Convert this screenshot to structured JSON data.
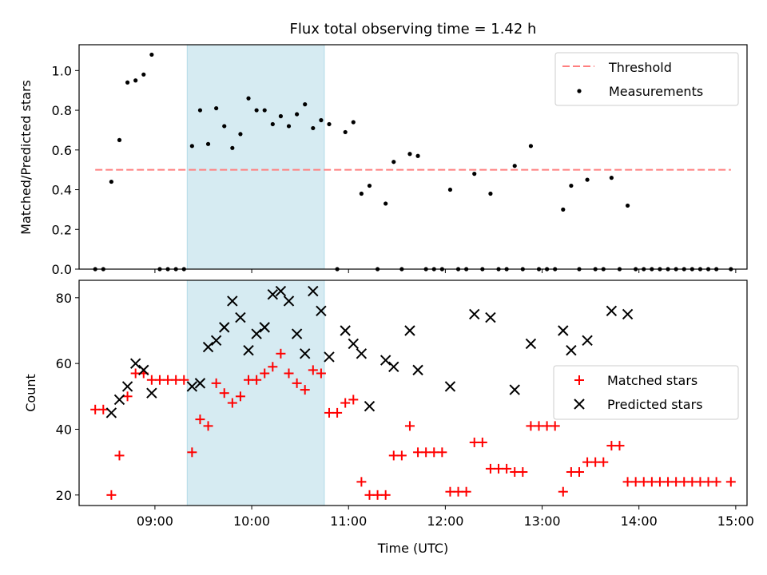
{
  "figure_title": "Flux total observing time = 1.42 h",
  "colors": {
    "threshold": "#ff7f7f",
    "measurements": "#000000",
    "matched": "#ff0000",
    "predicted": "#000000",
    "shade": "#add8e6"
  },
  "chart_data": [
    {
      "type": "scatter",
      "title": "",
      "ylabel": "Matched/Predicted stars",
      "xlabel": "",
      "xlim": [
        "08:13",
        "15:07"
      ],
      "ylim": [
        0,
        1.13
      ],
      "yticks": [
        "0.0",
        "0.2",
        "0.4",
        "0.6",
        "0.8",
        "1.0"
      ],
      "grid": false,
      "legend_position": "top-right",
      "legend": [
        "Threshold",
        "Measurements"
      ],
      "shaded_interval": [
        "09:20",
        "10:45"
      ],
      "threshold": {
        "name": "Threshold",
        "y": 0.5,
        "x_start": "08:23",
        "x_end": "14:57",
        "style": "dashed"
      },
      "series": [
        {
          "name": "Measurements",
          "points": [
            [
              "08:23",
              0
            ],
            [
              "08:28",
              0
            ],
            [
              "08:33",
              0.44
            ],
            [
              "08:38",
              0.65
            ],
            [
              "08:43",
              0.94
            ],
            [
              "08:48",
              0.95
            ],
            [
              "08:53",
              0.98
            ],
            [
              "08:58",
              1.08
            ],
            [
              "09:03",
              0
            ],
            [
              "09:08",
              0
            ],
            [
              "09:13",
              0
            ],
            [
              "09:18",
              0
            ],
            [
              "09:23",
              0.62
            ],
            [
              "09:28",
              0.8
            ],
            [
              "09:33",
              0.63
            ],
            [
              "09:38",
              0.81
            ],
            [
              "09:43",
              0.72
            ],
            [
              "09:48",
              0.61
            ],
            [
              "09:53",
              0.68
            ],
            [
              "09:58",
              0.86
            ],
            [
              "10:03",
              0.8
            ],
            [
              "10:08",
              0.8
            ],
            [
              "10:13",
              0.73
            ],
            [
              "10:18",
              0.77
            ],
            [
              "10:23",
              0.72
            ],
            [
              "10:28",
              0.78
            ],
            [
              "10:33",
              0.83
            ],
            [
              "10:38",
              0.71
            ],
            [
              "10:43",
              0.75
            ],
            [
              "10:48",
              0.73
            ],
            [
              "10:53",
              0
            ],
            [
              "10:58",
              0.69
            ],
            [
              "11:03",
              0.74
            ],
            [
              "11:08",
              0.38
            ],
            [
              "11:13",
              0.42
            ],
            [
              "11:18",
              0
            ],
            [
              "11:23",
              0.33
            ],
            [
              "11:28",
              0.54
            ],
            [
              "11:33",
              0
            ],
            [
              "11:38",
              0.58
            ],
            [
              "11:43",
              0.57
            ],
            [
              "11:48",
              0
            ],
            [
              "11:53",
              0
            ],
            [
              "11:58",
              0
            ],
            [
              "12:03",
              0.4
            ],
            [
              "12:08",
              0
            ],
            [
              "12:13",
              0
            ],
            [
              "12:18",
              0.48
            ],
            [
              "12:23",
              0
            ],
            [
              "12:28",
              0.38
            ],
            [
              "12:33",
              0
            ],
            [
              "12:38",
              0
            ],
            [
              "12:43",
              0.52
            ],
            [
              "12:48",
              0
            ],
            [
              "12:53",
              0.62
            ],
            [
              "12:58",
              0
            ],
            [
              "13:03",
              0
            ],
            [
              "13:08",
              0
            ],
            [
              "13:13",
              0.3
            ],
            [
              "13:18",
              0.42
            ],
            [
              "13:23",
              0
            ],
            [
              "13:28",
              0.45
            ],
            [
              "13:33",
              0
            ],
            [
              "13:38",
              0
            ],
            [
              "13:43",
              0.46
            ],
            [
              "13:48",
              0
            ],
            [
              "13:53",
              0.32
            ],
            [
              "13:58",
              0
            ],
            [
              "14:03",
              0
            ],
            [
              "14:08",
              0
            ],
            [
              "14:13",
              0
            ],
            [
              "14:18",
              0
            ],
            [
              "14:23",
              0
            ],
            [
              "14:28",
              0
            ],
            [
              "14:33",
              0
            ],
            [
              "14:38",
              0
            ],
            [
              "14:43",
              0
            ],
            [
              "14:48",
              0
            ],
            [
              "14:57",
              0
            ]
          ]
        }
      ]
    },
    {
      "type": "scatter",
      "title": "",
      "xlabel": "Time (UTC)",
      "ylabel": "Count",
      "xlim": [
        "08:13",
        "15:07"
      ],
      "ylim": [
        16.8,
        85.3
      ],
      "xticks": [
        "09:00",
        "10:00",
        "11:00",
        "12:00",
        "13:00",
        "14:00",
        "15:00"
      ],
      "yticks": [
        "20",
        "40",
        "60",
        "80"
      ],
      "grid": false,
      "legend_position": "center-right",
      "legend": [
        "Matched stars",
        "Predicted stars"
      ],
      "shaded_interval": [
        "09:20",
        "10:45"
      ],
      "series": [
        {
          "name": "Matched stars",
          "marker": "+",
          "points": [
            [
              "08:23",
              46
            ],
            [
              "08:28",
              46
            ],
            [
              "08:33",
              20
            ],
            [
              "08:38",
              32
            ],
            [
              "08:43",
              50
            ],
            [
              "08:48",
              57
            ],
            [
              "08:53",
              57
            ],
            [
              "08:58",
              55
            ],
            [
              "09:03",
              55
            ],
            [
              "09:08",
              55
            ],
            [
              "09:13",
              55
            ],
            [
              "09:18",
              55
            ],
            [
              "09:23",
              33
            ],
            [
              "09:28",
              43
            ],
            [
              "09:33",
              41
            ],
            [
              "09:38",
              54
            ],
            [
              "09:43",
              51
            ],
            [
              "09:48",
              48
            ],
            [
              "09:53",
              50
            ],
            [
              "09:58",
              55
            ],
            [
              "10:03",
              55
            ],
            [
              "10:08",
              57
            ],
            [
              "10:13",
              59
            ],
            [
              "10:18",
              63
            ],
            [
              "10:23",
              57
            ],
            [
              "10:28",
              54
            ],
            [
              "10:33",
              52
            ],
            [
              "10:38",
              58
            ],
            [
              "10:43",
              57
            ],
            [
              "10:48",
              45
            ],
            [
              "10:53",
              45
            ],
            [
              "10:58",
              48
            ],
            [
              "11:03",
              49
            ],
            [
              "11:08",
              24
            ],
            [
              "11:13",
              20
            ],
            [
              "11:18",
              20
            ],
            [
              "11:23",
              20
            ],
            [
              "11:28",
              32
            ],
            [
              "11:33",
              32
            ],
            [
              "11:38",
              41
            ],
            [
              "11:43",
              33
            ],
            [
              "11:48",
              33
            ],
            [
              "11:53",
              33
            ],
            [
              "11:58",
              33
            ],
            [
              "12:03",
              21
            ],
            [
              "12:08",
              21
            ],
            [
              "12:13",
              21
            ],
            [
              "12:18",
              36
            ],
            [
              "12:23",
              36
            ],
            [
              "12:28",
              28
            ],
            [
              "12:33",
              28
            ],
            [
              "12:38",
              28
            ],
            [
              "12:43",
              27
            ],
            [
              "12:48",
              27
            ],
            [
              "12:53",
              41
            ],
            [
              "12:58",
              41
            ],
            [
              "13:03",
              41
            ],
            [
              "13:08",
              41
            ],
            [
              "13:13",
              21
            ],
            [
              "13:18",
              27
            ],
            [
              "13:23",
              27
            ],
            [
              "13:28",
              30
            ],
            [
              "13:33",
              30
            ],
            [
              "13:38",
              30
            ],
            [
              "13:43",
              35
            ],
            [
              "13:48",
              35
            ],
            [
              "13:53",
              24
            ],
            [
              "13:58",
              24
            ],
            [
              "14:03",
              24
            ],
            [
              "14:08",
              24
            ],
            [
              "14:13",
              24
            ],
            [
              "14:18",
              24
            ],
            [
              "14:23",
              24
            ],
            [
              "14:28",
              24
            ],
            [
              "14:33",
              24
            ],
            [
              "14:38",
              24
            ],
            [
              "14:43",
              24
            ],
            [
              "14:48",
              24
            ],
            [
              "14:57",
              24
            ]
          ]
        },
        {
          "name": "Predicted stars",
          "marker": "x",
          "points": [
            [
              "08:33",
              45
            ],
            [
              "08:38",
              49
            ],
            [
              "08:43",
              53
            ],
            [
              "08:48",
              60
            ],
            [
              "08:53",
              58
            ],
            [
              "08:58",
              51
            ],
            [
              "09:23",
              53
            ],
            [
              "09:28",
              54
            ],
            [
              "09:33",
              65
            ],
            [
              "09:38",
              67
            ],
            [
              "09:43",
              71
            ],
            [
              "09:48",
              79
            ],
            [
              "09:53",
              74
            ],
            [
              "09:58",
              64
            ],
            [
              "10:03",
              69
            ],
            [
              "10:08",
              71
            ],
            [
              "10:13",
              81
            ],
            [
              "10:18",
              82
            ],
            [
              "10:23",
              79
            ],
            [
              "10:28",
              69
            ],
            [
              "10:33",
              63
            ],
            [
              "10:38",
              82
            ],
            [
              "10:43",
              76
            ],
            [
              "10:48",
              62
            ],
            [
              "10:58",
              70
            ],
            [
              "11:03",
              66
            ],
            [
              "11:08",
              63
            ],
            [
              "11:13",
              47
            ],
            [
              "11:23",
              61
            ],
            [
              "11:28",
              59
            ],
            [
              "11:38",
              70
            ],
            [
              "11:43",
              58
            ],
            [
              "12:03",
              53
            ],
            [
              "12:18",
              75
            ],
            [
              "12:28",
              74
            ],
            [
              "12:43",
              52
            ],
            [
              "12:53",
              66
            ],
            [
              "13:13",
              70
            ],
            [
              "13:18",
              64
            ],
            [
              "13:28",
              67
            ],
            [
              "13:43",
              76
            ],
            [
              "13:53",
              75
            ]
          ]
        }
      ]
    }
  ]
}
